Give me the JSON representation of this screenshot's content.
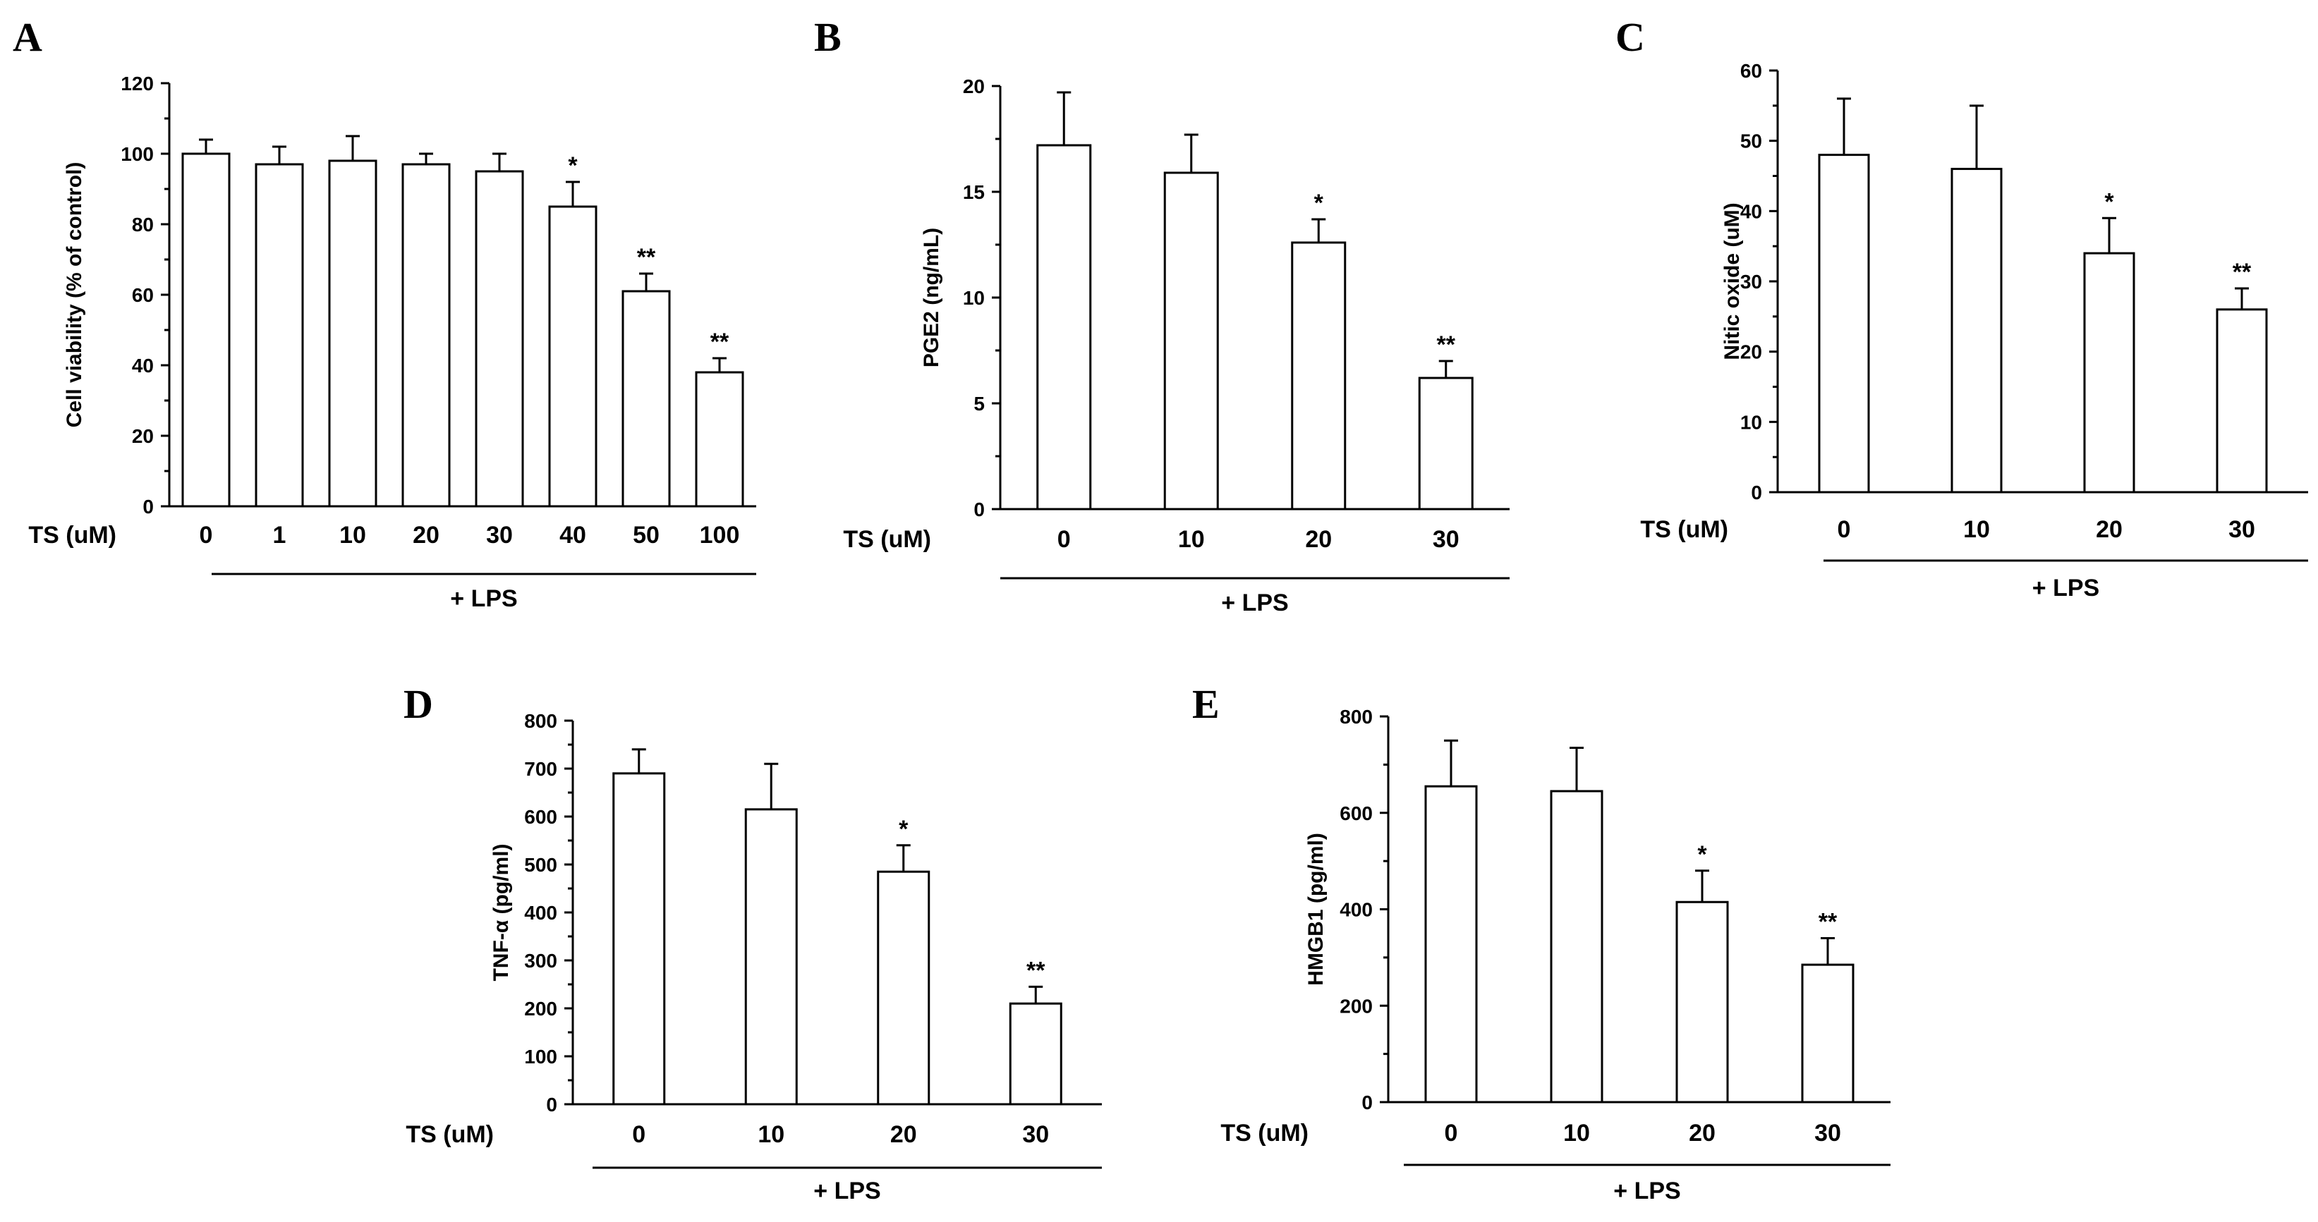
{
  "figure_note": "+ LPS",
  "chart_data": [
    {
      "type": "bar",
      "panel": "A",
      "ylabel": "Cell viability (% of control)",
      "xlabel": "TS (uM)",
      "group_label": "+ LPS",
      "ylim": [
        0,
        120
      ],
      "yticks": [
        0,
        20,
        40,
        60,
        80,
        100,
        120
      ],
      "categories": [
        "0",
        "1",
        "10",
        "20",
        "30",
        "40",
        "50",
        "100"
      ],
      "values": [
        100,
        97,
        98,
        97,
        95,
        85,
        61,
        38
      ],
      "errors": [
        4,
        5,
        7,
        3,
        5,
        7,
        5,
        4
      ],
      "significance": [
        "",
        "",
        "",
        "",
        "",
        "*",
        "**",
        "**"
      ]
    },
    {
      "type": "bar",
      "panel": "B",
      "ylabel": "PGE2 (ng/mL)",
      "xlabel": "TS (uM)",
      "group_label": "+ LPS",
      "ylim": [
        0,
        20
      ],
      "yticks": [
        0,
        5,
        10,
        15,
        20
      ],
      "categories": [
        "0",
        "10",
        "20",
        "30"
      ],
      "values": [
        17.2,
        15.9,
        12.6,
        6.2
      ],
      "errors": [
        2.5,
        1.8,
        1.1,
        0.8
      ],
      "significance": [
        "",
        "",
        "*",
        "**"
      ]
    },
    {
      "type": "bar",
      "panel": "C",
      "ylabel": "Nitic oxide (uM)",
      "xlabel": "TS (uM)",
      "group_label": "+ LPS",
      "ylim": [
        0,
        60
      ],
      "yticks": [
        0,
        10,
        20,
        30,
        40,
        50,
        60
      ],
      "categories": [
        "0",
        "10",
        "20",
        "30"
      ],
      "values": [
        48,
        46,
        34,
        26
      ],
      "errors": [
        8,
        9,
        5,
        3
      ],
      "significance": [
        "",
        "",
        "*",
        "**"
      ]
    },
    {
      "type": "bar",
      "panel": "D",
      "ylabel": "TNF-α (pg/ml)",
      "xlabel": "TS (uM)",
      "group_label": "+ LPS",
      "ylim": [
        0,
        800
      ],
      "yticks": [
        0,
        100,
        200,
        300,
        400,
        500,
        600,
        700,
        800
      ],
      "categories": [
        "0",
        "10",
        "20",
        "30"
      ],
      "values": [
        690,
        615,
        485,
        210
      ],
      "errors": [
        50,
        95,
        55,
        35
      ],
      "significance": [
        "",
        "",
        "*",
        "**"
      ]
    },
    {
      "type": "bar",
      "panel": "E",
      "ylabel": "HMGB1 (pg/ml)",
      "xlabel": "TS (uM)",
      "group_label": "+ LPS",
      "ylim": [
        0,
        800
      ],
      "yticks": [
        0,
        200,
        400,
        600,
        800
      ],
      "categories": [
        "0",
        "10",
        "20",
        "30"
      ],
      "values": [
        655,
        645,
        415,
        285
      ],
      "errors": [
        95,
        90,
        65,
        55
      ],
      "significance": [
        "",
        "",
        "*",
        "**"
      ]
    }
  ]
}
